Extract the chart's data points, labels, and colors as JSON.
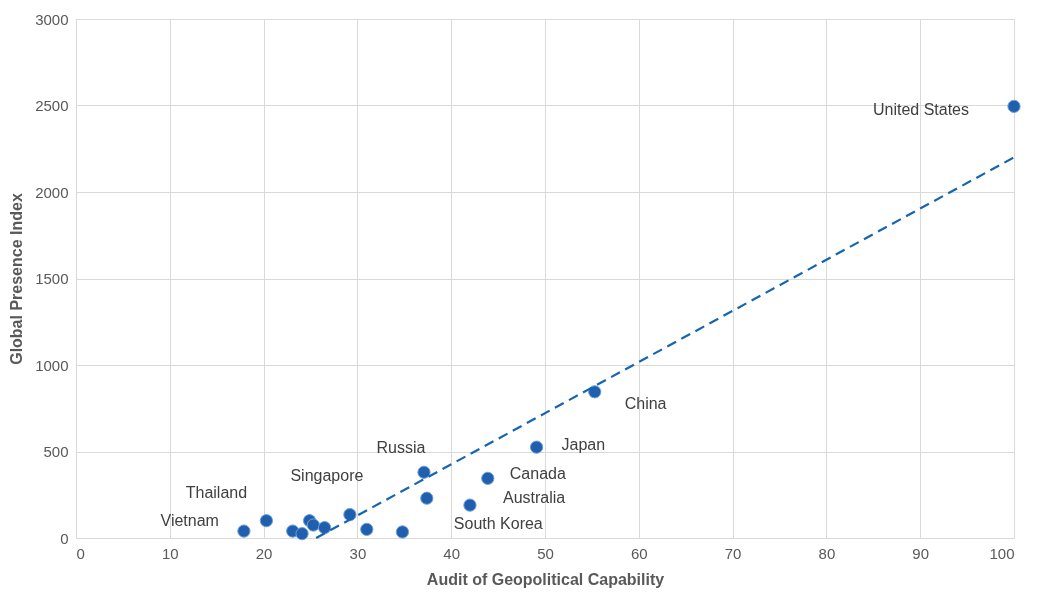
{
  "chart_data": {
    "type": "scatter",
    "xlabel": "Audit of Geopolitical Capability",
    "ylabel": "Global Presence Index",
    "xlim": [
      0,
      100
    ],
    "xticks": [
      0,
      10,
      20,
      30,
      40,
      50,
      60,
      70,
      80,
      90,
      100
    ],
    "ylim": [
      0,
      3000
    ],
    "yticks": [
      0,
      500,
      1000,
      1500,
      2000,
      2500,
      3000
    ],
    "grid": true,
    "series": [
      {
        "marker": "circle",
        "color": "#1f5fad",
        "x": [
          17.9,
          20.3,
          23.1,
          24.1,
          24.9,
          25.3,
          26.5,
          29.2,
          31.0,
          34.8,
          37.1,
          37.4,
          42.0,
          43.9,
          49.1,
          55.3,
          100
        ],
        "values": [
          40,
          100,
          40,
          25,
          100,
          75,
          60,
          135,
          50,
          35,
          380,
          230,
          190,
          345,
          525,
          845,
          2495
        ]
      },
      {
        "type": "line",
        "marker": "none",
        "color": "#1565b0",
        "line_style": "dashed",
        "x": [
          25.6,
          100
        ],
        "values": [
          0,
          2200
        ]
      }
    ],
    "annotations": [
      {
        "text": "Vietnam",
        "x": 17.9,
        "y": 40
      },
      {
        "text": "Thailand",
        "x": 20.3,
        "y": 100
      },
      {
        "text": "Singapore",
        "x": 29.2,
        "y": 135
      },
      {
        "text": "Russia",
        "x": 37.1,
        "y": 380
      },
      {
        "text": "South Korea",
        "x": 37.4,
        "y": 230
      },
      {
        "text": "Australia",
        "x": 42.0,
        "y": 190
      },
      {
        "text": "Canada",
        "x": 43.9,
        "y": 345
      },
      {
        "text": "Japan",
        "x": 49.1,
        "y": 525
      },
      {
        "text": "China",
        "x": 55.3,
        "y": 845
      },
      {
        "text": "United States",
        "x": 100,
        "y": 2495
      }
    ]
  }
}
